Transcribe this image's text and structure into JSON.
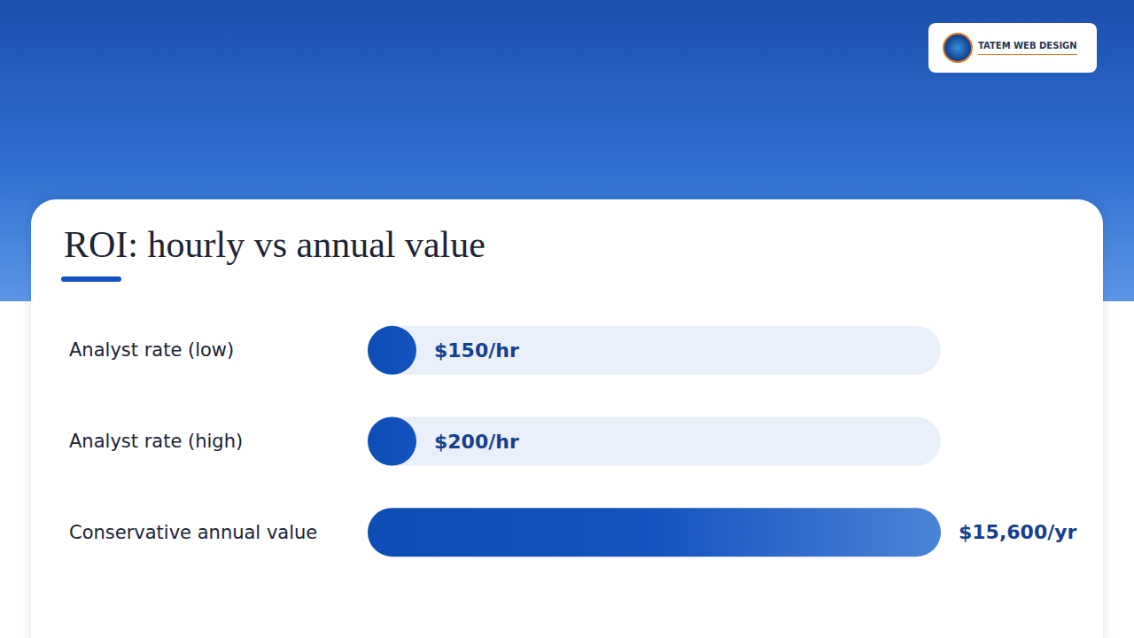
{
  "chart_data": {
    "type": "bar",
    "title": "ROI: hourly vs annual value",
    "orientation": "horizontal",
    "categories": [
      "Analyst rate (low)",
      "Analyst rate (high)",
      "Conservative annual value"
    ],
    "values": [
      150,
      200,
      15600
    ],
    "value_labels": [
      "$150/hr",
      "$200/hr",
      "$15,600/yr"
    ],
    "color": "#1553c0",
    "xlim": [
      0,
      15600
    ],
    "xticks": [
      0,
      15600
    ],
    "grid": false,
    "data_labels": true,
    "tick_labels": "y"
  },
  "brand": "TATEM WEB DESIGN"
}
